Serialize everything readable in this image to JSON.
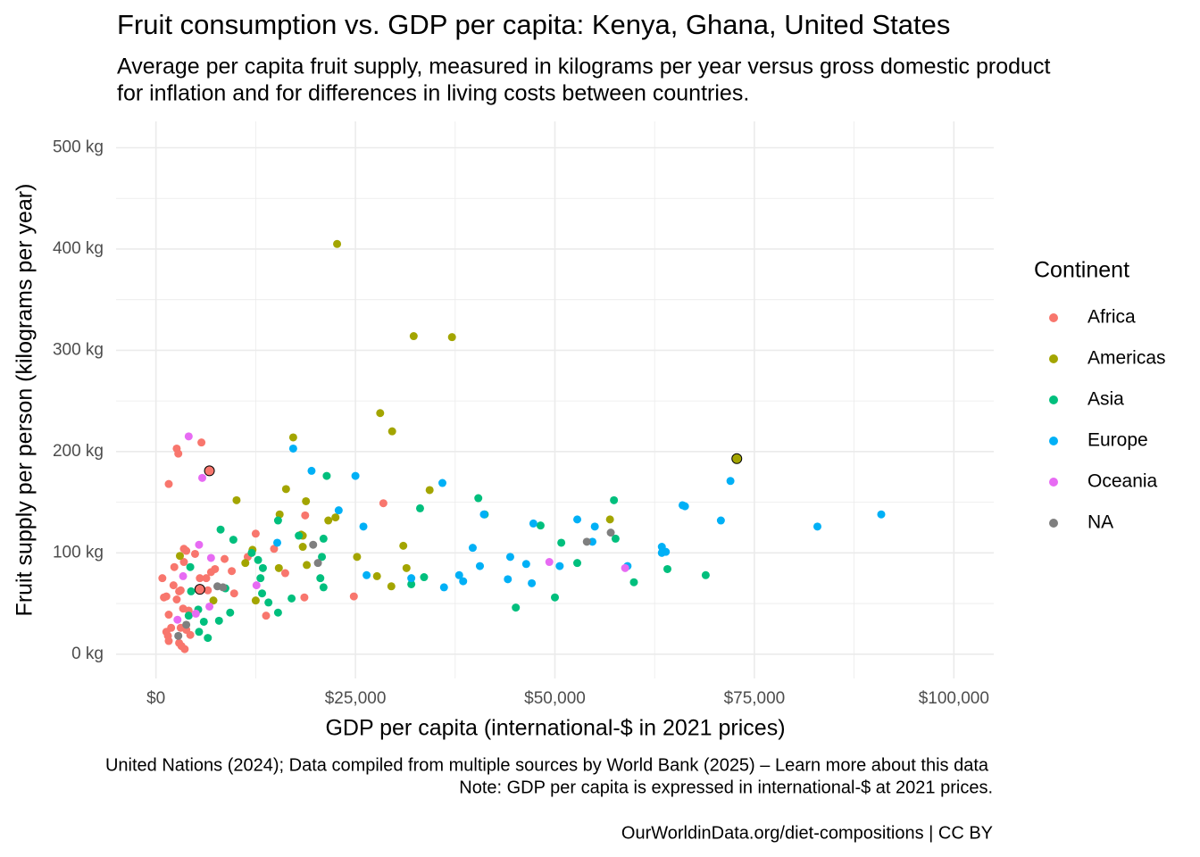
{
  "chart_data": {
    "type": "scatter",
    "title": "Fruit consumption vs. GDP per capita: Kenya, Ghana, United States",
    "subtitle": [
      "Average per capita fruit supply, measured in kilograms per year versus gross domestic product",
      "for inflation and for differences in living costs between countries."
    ],
    "x_label": "GDP per capita (international-$ in 2021 prices)",
    "y_label": "Fruit supply per person (kilograms per year)",
    "source": "United Nations (2024); Data compiled from multiple sources by World Bank (2025) – Learn more about this data",
    "note": "Note: GDP per capita is expressed in international-$ at 2021 prices.",
    "footer": "OurWorldinData.org/diet-compositions | CC BY",
    "legend_title": "Continent",
    "legend_position": "right",
    "grid": true,
    "xlim": [
      -5000,
      105000
    ],
    "ylim": [
      -24,
      526
    ],
    "xticks": [
      {
        "value": 0,
        "label": "$0"
      },
      {
        "value": 25000,
        "label": "$25,000"
      },
      {
        "value": 50000,
        "label": "$50,000"
      },
      {
        "value": 75000,
        "label": "$75,000"
      },
      {
        "value": 100000,
        "label": "$100,000"
      }
    ],
    "yticks": [
      {
        "value": 0,
        "label": "0 kg"
      },
      {
        "value": 100,
        "label": "100 kg"
      },
      {
        "value": 200,
        "label": "200 kg"
      },
      {
        "value": 300,
        "label": "300 kg"
      },
      {
        "value": 400,
        "label": "400 kg"
      },
      {
        "value": 500,
        "label": "500 kg"
      }
    ],
    "xminor": [
      12500,
      37500,
      62500,
      87500
    ],
    "yminor": [
      50,
      150,
      250,
      350,
      450
    ],
    "series": [
      {
        "name": "Africa",
        "color": "#F8766D",
        "outlined": [
          46,
          47
        ],
        "x": [
          1600,
          2600,
          2800,
          5700,
          800,
          1000,
          1300,
          1600,
          1300,
          1500,
          1600,
          1900,
          2300,
          2200,
          2600,
          2900,
          3100,
          3100,
          2900,
          3200,
          3600,
          3400,
          3500,
          3800,
          3500,
          4100,
          4300,
          3800,
          4900,
          5500,
          6300,
          6900,
          6500,
          7400,
          8600,
          9500,
          9800,
          11500,
          12500,
          13800,
          14800,
          16200,
          18600,
          18700,
          28500,
          24800,
          5500,
          6700
        ],
        "values": [
          168,
          203,
          198,
          209,
          75,
          56,
          57,
          39,
          22,
          18,
          13,
          26,
          86,
          68,
          54,
          62,
          63,
          26,
          11,
          8,
          5,
          45,
          104,
          102,
          91,
          43,
          19,
          24,
          99,
          75,
          75,
          81,
          63,
          84,
          94,
          82,
          60,
          96,
          119,
          38,
          104,
          80,
          56,
          137,
          149,
          57,
          64,
          181
        ]
      },
      {
        "name": "Americas",
        "color": "#A3A500",
        "outlined": [
          28
        ],
        "x": [
          22700,
          32300,
          37100,
          28100,
          29600,
          17200,
          16300,
          10100,
          18800,
          22500,
          21600,
          15500,
          18400,
          18200,
          18400,
          25200,
          31000,
          34300,
          12100,
          11200,
          15400,
          18900,
          31400,
          27700,
          29500,
          7200,
          3000,
          56900,
          72800,
          12500
        ],
        "values": [
          405,
          314,
          313,
          238,
          220,
          214,
          163,
          152,
          151,
          135,
          132,
          138,
          117,
          118,
          106,
          96,
          107,
          162,
          103,
          90,
          85,
          88,
          85,
          77,
          67,
          53,
          97,
          133,
          193,
          53
        ]
      },
      {
        "name": "Asia",
        "color": "#00BF7D",
        "outlined": [],
        "x": [
          40400,
          57400,
          33100,
          41200,
          48200,
          21400,
          15300,
          8100,
          9700,
          17900,
          21000,
          50800,
          57600,
          12000,
          12800,
          13400,
          13100,
          13300,
          20800,
          20600,
          21000,
          32000,
          33600,
          4300,
          4400,
          5300,
          4100,
          6000,
          5400,
          6500,
          7900,
          9300,
          8700,
          14100,
          15300,
          17000,
          52800,
          64100,
          68900,
          59900,
          50000,
          45100
        ],
        "values": [
          154,
          152,
          144,
          138,
          127,
          176,
          132,
          123,
          113,
          117,
          114,
          110,
          114,
          100,
          93,
          85,
          75,
          60,
          96,
          75,
          66,
          69,
          76,
          86,
          62,
          44,
          38,
          32,
          22,
          16,
          33,
          41,
          65,
          51,
          41,
          55,
          90,
          84,
          78,
          71,
          56,
          46
        ]
      },
      {
        "name": "Europe",
        "color": "#00B0F6",
        "outlined": [],
        "x": [
          17200,
          19500,
          25000,
          35900,
          72000,
          22900,
          26000,
          41100,
          47300,
          52800,
          55000,
          66000,
          66300,
          70800,
          90900,
          82900,
          15200,
          39700,
          44400,
          46400,
          54700,
          63400,
          63400,
          63900,
          59100,
          50600,
          40600,
          32000,
          38000,
          38500,
          36100,
          44100,
          47100,
          26400
        ],
        "values": [
          203,
          181,
          176,
          169,
          171,
          142,
          126,
          138,
          129,
          133,
          126,
          147,
          146,
          132,
          138,
          126,
          110,
          105,
          96,
          89,
          111,
          106,
          100,
          101,
          87,
          87,
          87,
          75,
          78,
          72,
          66,
          74,
          70,
          78
        ]
      },
      {
        "name": "Oceania",
        "color": "#E76BF3",
        "outlined": [],
        "x": [
          4100,
          5800,
          5400,
          6900,
          3400,
          12600,
          49300,
          58800,
          6700,
          2700,
          5000
        ],
        "values": [
          215,
          174,
          108,
          95,
          77,
          68,
          91,
          85,
          47,
          34,
          40
        ]
      },
      {
        "name": "NA",
        "color": "#7F7F7F",
        "outlined": [],
        "x": [
          19700,
          20300,
          7700,
          8400,
          54000,
          57000,
          3800,
          2800
        ],
        "values": [
          108,
          90,
          67,
          66,
          111,
          120,
          29,
          18
        ]
      }
    ]
  }
}
